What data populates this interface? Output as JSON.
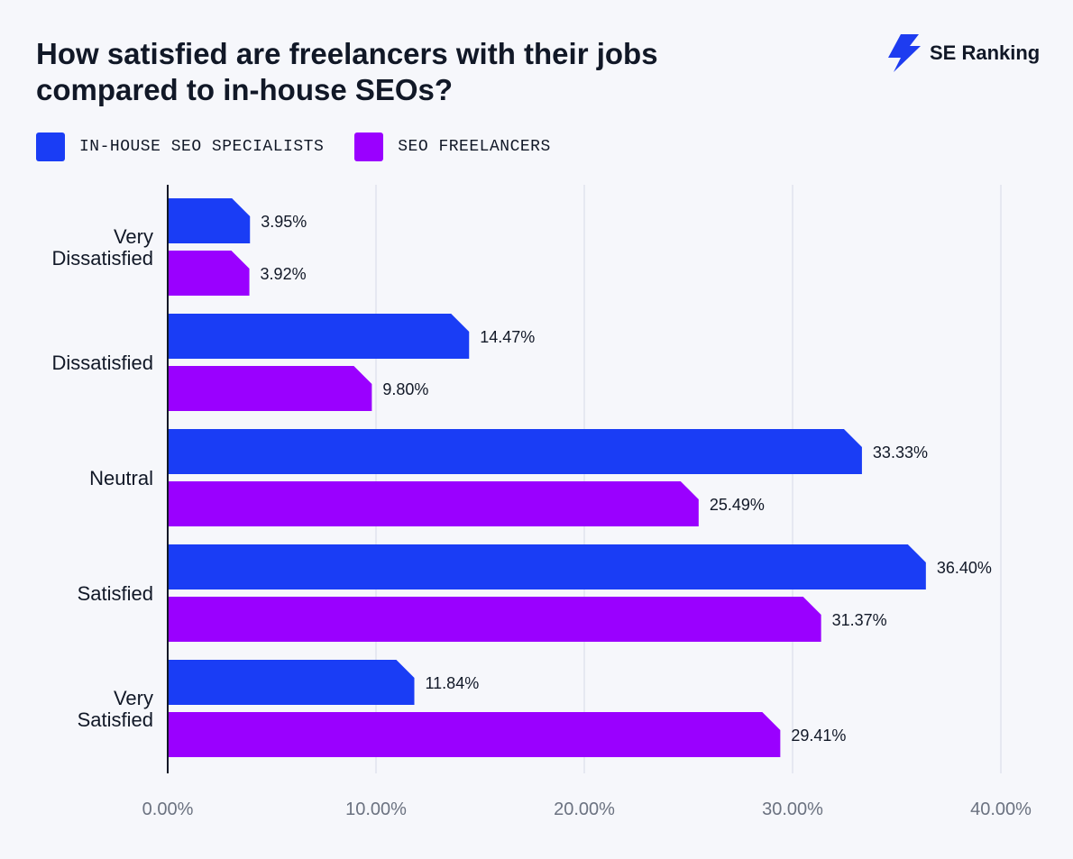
{
  "title": "How satisfied are freelancers with their jobs compared to in-house SEOs?",
  "brand": {
    "name": "SE Ranking",
    "icon": "se-ranking-bolt-icon",
    "color": "#1e3cf0"
  },
  "legend": [
    {
      "label": "IN-HOUSE SEO SPECIALISTS",
      "color": "#1a3df5"
    },
    {
      "label": "SEO FREELANCERS",
      "color": "#9a00ff"
    }
  ],
  "chart_data": {
    "type": "bar",
    "orientation": "horizontal",
    "title": "How satisfied are freelancers with their jobs compared to in-house SEOs?",
    "categories": [
      [
        "Very",
        "Dissatisfied"
      ],
      [
        "Dissatisfied"
      ],
      [
        "Neutral"
      ],
      [
        "Satisfied"
      ],
      [
        "Very",
        "Satisfied"
      ]
    ],
    "series": [
      {
        "name": "IN-HOUSE SEO SPECIALISTS",
        "color": "#1a3df5",
        "values": [
          3.95,
          14.47,
          33.33,
          36.4,
          11.84
        ],
        "labels": [
          "3.95%",
          "14.47%",
          "33.33%",
          "36.40%",
          "11.84%"
        ]
      },
      {
        "name": "SEO FREELANCERS",
        "color": "#9a00ff",
        "values": [
          3.92,
          9.8,
          25.49,
          31.37,
          29.41
        ],
        "labels": [
          "3.92%",
          "9.80%",
          "25.49%",
          "31.37%",
          "29.41%"
        ]
      }
    ],
    "xlim": [
      0,
      40
    ],
    "xticks": [
      0,
      10,
      20,
      30,
      40
    ],
    "xtick_labels": [
      "0.00%",
      "10.00%",
      "20.00%",
      "30.00%",
      "40.00%"
    ],
    "xlabel": "",
    "ylabel": "",
    "grid": true,
    "legend_position": "top-left"
  }
}
